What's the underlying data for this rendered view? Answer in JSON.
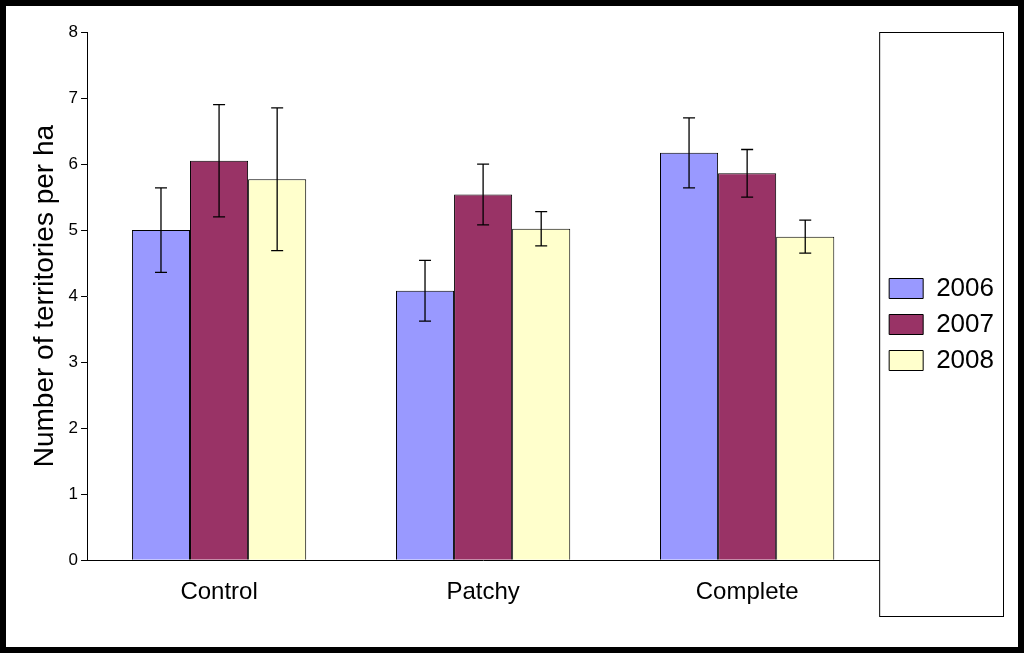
{
  "chart_data": {
    "type": "bar",
    "y_label": "Number of territories per ha",
    "categories": [
      "Control",
      "Patchy",
      "Complete"
    ],
    "series": [
      {
        "name": "2006",
        "color": "#9999ff",
        "values": [
          5.0,
          4.08,
          6.17
        ],
        "errors": [
          0.64,
          0.46,
          0.53
        ]
      },
      {
        "name": "2007",
        "color": "#993366",
        "values": [
          6.05,
          5.54,
          5.86
        ],
        "errors": [
          0.85,
          0.46,
          0.36
        ]
      },
      {
        "name": "2008",
        "color": "#ffffcc",
        "values": [
          5.77,
          5.02,
          4.9
        ],
        "errors": [
          1.08,
          0.26,
          0.25
        ]
      }
    ],
    "ylim": [
      0,
      8
    ],
    "yticks": [
      0,
      1,
      2,
      3,
      4,
      5,
      6,
      7,
      8
    ],
    "grid": false,
    "legend": "right"
  }
}
